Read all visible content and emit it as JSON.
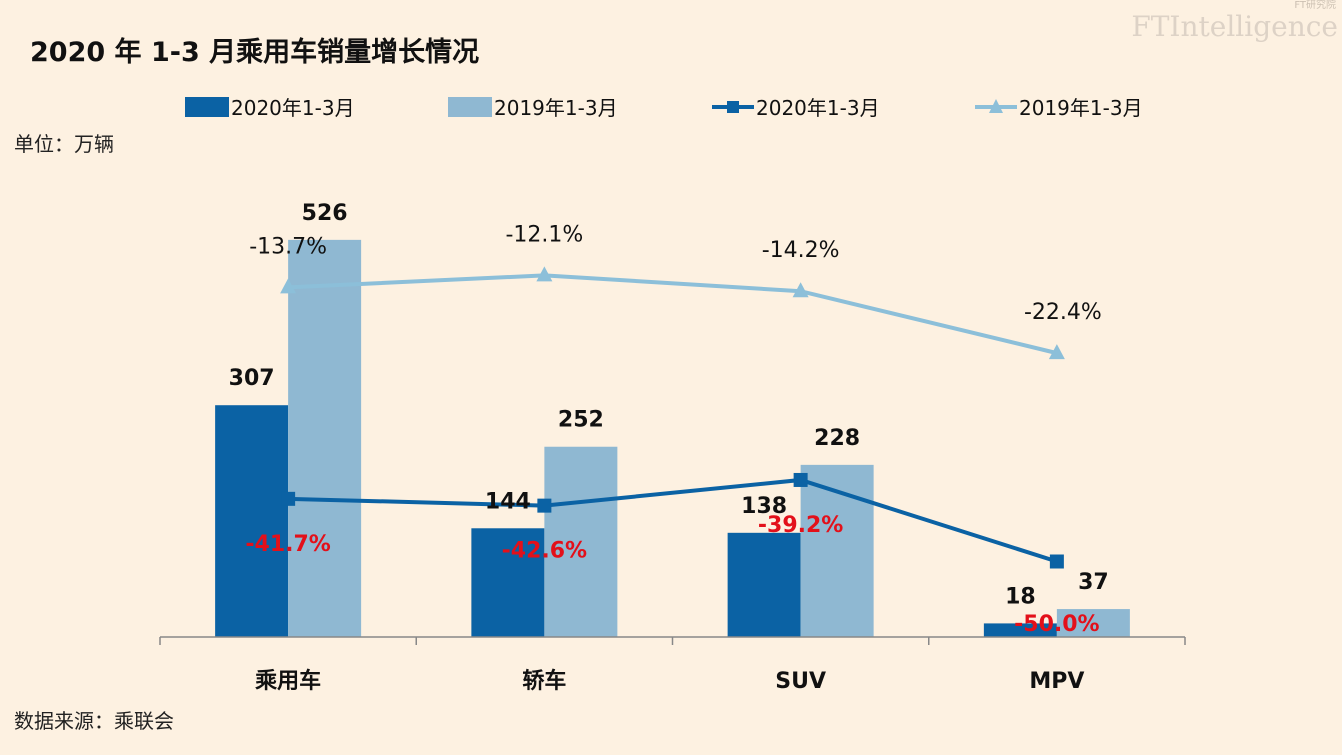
{
  "title": "2020 年 1-3 月乘用车销量增长情况",
  "unit": "单位：万辆",
  "source": "数据来源：乘联会",
  "logo": "FTIntelligence",
  "logo_cn": "FT研究院",
  "watermark": "FTIntelligence",
  "watermark_cn": "FT研究院",
  "colors": {
    "bar2020": "#0b62a4",
    "bar2019": "#8fb8d2",
    "line2020": "#0b62a4",
    "line2019": "#8cbfd9",
    "neg": "#e3101a",
    "bg": "#fdf1e1"
  },
  "chart_data": {
    "type": "bar",
    "title": "2020 年 1-3 月乘用车销量增长情况",
    "ylabel": "单位：万辆",
    "categories": [
      "乘用车",
      "轿车",
      "SUV",
      "MPV"
    ],
    "ylim": [
      0,
      600
    ],
    "y2lim": [
      -60,
      0
    ],
    "grid": false,
    "legend_placement": "top",
    "series": [
      {
        "name": "2020年1-3月",
        "type": "bar",
        "values": [
          307,
          144,
          138,
          18
        ],
        "labels": [
          "307",
          "144",
          "138",
          "18"
        ]
      },
      {
        "name": "2019年1-3月",
        "type": "bar",
        "values": [
          526,
          252,
          228,
          37
        ],
        "labels": [
          "526",
          "252",
          "228",
          "37"
        ]
      },
      {
        "name": "2020年1-3月",
        "type": "line",
        "marker": "square",
        "axis": "secondary",
        "values": [
          -41.7,
          -42.6,
          -39.2,
          -50.0
        ],
        "labels": [
          "-41.7%",
          "-42.6%",
          "-39.2%",
          "-50.0%"
        ]
      },
      {
        "name": "2019年1-3月",
        "type": "line",
        "marker": "triangle",
        "axis": "secondary",
        "values": [
          -13.7,
          -12.1,
          -14.2,
          -22.4
        ],
        "labels": [
          "-13.7%",
          "-12.1%",
          "-14.2%",
          "-22.4%"
        ]
      }
    ]
  }
}
